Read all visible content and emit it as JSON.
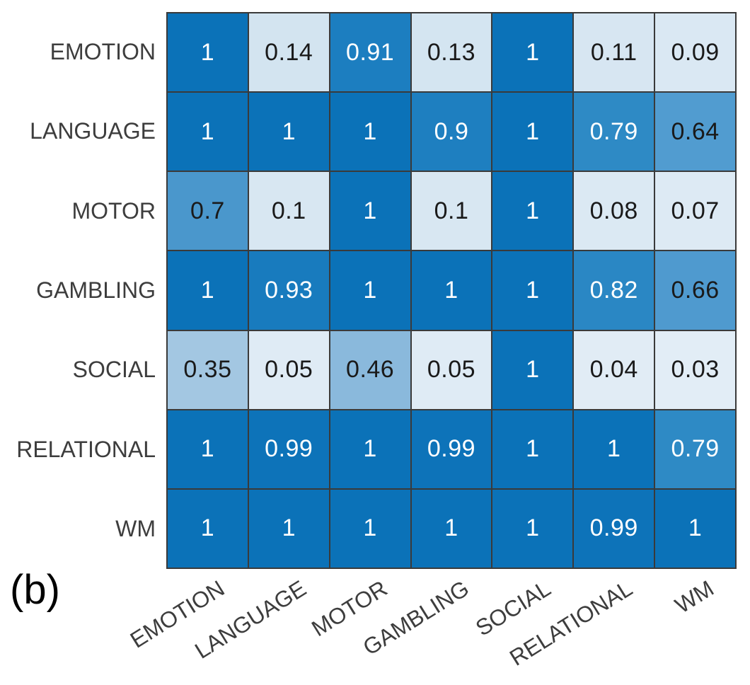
{
  "figure_label": "(b)",
  "chart_data": {
    "type": "heatmap",
    "title": "",
    "xlabel": "",
    "ylabel": "",
    "rows": [
      "EMOTION",
      "LANGUAGE",
      "MOTOR",
      "GAMBLING",
      "SOCIAL",
      "RELATIONAL",
      "WM"
    ],
    "columns": [
      "EMOTION",
      "LANGUAGE",
      "MOTOR",
      "GAMBLING",
      "SOCIAL",
      "RELATIONAL",
      "WM"
    ],
    "values": [
      [
        1,
        0.14,
        0.91,
        0.13,
        1,
        0.11,
        0.09
      ],
      [
        1,
        1,
        1,
        0.9,
        1,
        0.79,
        0.64
      ],
      [
        0.7,
        0.1,
        1,
        0.1,
        1,
        0.08,
        0.07
      ],
      [
        1,
        0.93,
        1,
        1,
        1,
        0.82,
        0.66
      ],
      [
        0.35,
        0.05,
        0.46,
        0.05,
        1,
        0.04,
        0.03
      ],
      [
        1,
        0.99,
        1,
        0.99,
        1,
        1,
        0.79
      ],
      [
        1,
        1,
        1,
        1,
        1,
        0.99,
        1
      ]
    ],
    "value_range": [
      0,
      1
    ],
    "grid": true,
    "legend": "none",
    "colors": {
      "grid_line": "#3a3a3a",
      "axis_label": "#3d3d3d",
      "cell_text_dark": "#1a1a1a",
      "cell_text_light": "#ffffff",
      "colormap_stops": [
        [
          0.0,
          "#e9f1f8"
        ],
        [
          0.03,
          "#e2edf6"
        ],
        [
          0.14,
          "#d3e4f0"
        ],
        [
          0.35,
          "#a3c7e2"
        ],
        [
          0.46,
          "#8ab9dc"
        ],
        [
          0.64,
          "#519cd0"
        ],
        [
          0.7,
          "#4a97cc"
        ],
        [
          0.79,
          "#2e8ac5"
        ],
        [
          0.91,
          "#1c7ec0"
        ],
        [
          1.0,
          "#0b72b8"
        ]
      ]
    }
  }
}
